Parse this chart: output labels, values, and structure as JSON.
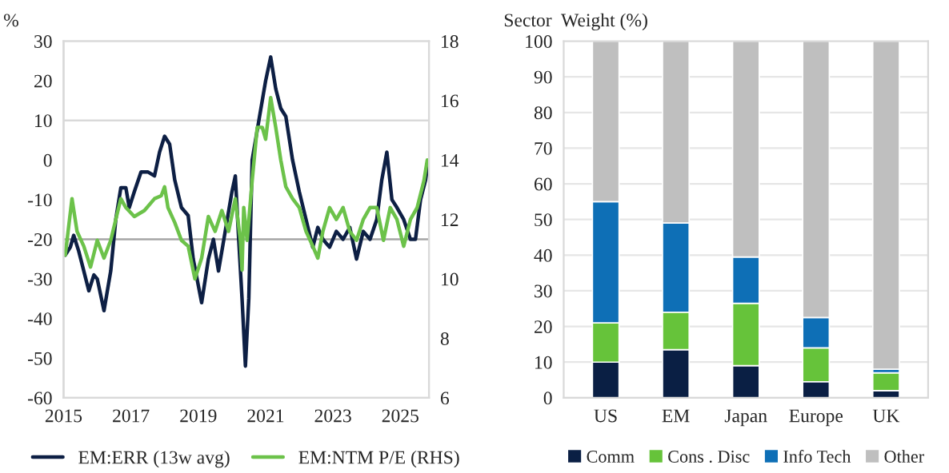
{
  "chart_data": [
    {
      "type": "line",
      "ylabel": "%",
      "xlim": [
        2015,
        2025.85
      ],
      "xticks": [
        {
          "value": 2015,
          "label": "2015"
        },
        {
          "value": 2017,
          "label": "2017"
        },
        {
          "value": 2019,
          "label": "2019"
        },
        {
          "value": 2021,
          "label": "2021"
        },
        {
          "value": 2023,
          "label": "2023"
        },
        {
          "value": 2025,
          "label": "2025"
        }
      ],
      "ylim": [
        -60,
        30
      ],
      "yticks": [
        -60,
        -50,
        -40,
        -30,
        -20,
        -10,
        0,
        10,
        20,
        30
      ],
      "y2lim": [
        6,
        18
      ],
      "y2ticks": [
        6,
        8,
        10,
        12,
        14,
        16,
        18
      ],
      "grid": false,
      "legend": "bottom",
      "marker": "none",
      "line_style": "solid",
      "ref_lines": [
        {
          "axis": "y",
          "value": 10,
          "color": "#d9d9d9"
        },
        {
          "axis": "y",
          "value": -20,
          "color": "#a6a6a6"
        }
      ],
      "series": [
        {
          "name": "EM:ERR (13w avg)",
          "color": "#0d1f44",
          "x": [
            2015.05,
            2015.2,
            2015.3,
            2015.45,
            2015.6,
            2015.75,
            2015.9,
            2016.0,
            2016.2,
            2016.4,
            2016.55,
            2016.7,
            2016.85,
            2016.95,
            2017.1,
            2017.3,
            2017.5,
            2017.7,
            2017.85,
            2018.0,
            2018.15,
            2018.3,
            2018.5,
            2018.7,
            2018.85,
            2019.1,
            2019.3,
            2019.45,
            2019.6,
            2019.8,
            2020.0,
            2020.1,
            2020.2,
            2020.3,
            2020.4,
            2020.5,
            2020.6,
            2020.8,
            2021.0,
            2021.15,
            2021.3,
            2021.45,
            2021.6,
            2021.8,
            2022.0,
            2022.2,
            2022.4,
            2022.55,
            2022.7,
            2022.9,
            2023.1,
            2023.3,
            2023.5,
            2023.7,
            2023.9,
            2024.1,
            2024.3,
            2024.45,
            2024.6,
            2024.75,
            2024.9,
            2025.1,
            2025.3,
            2025.45,
            2025.6,
            2025.75,
            2025.8
          ],
          "values": [
            -24,
            -22,
            -19,
            -23,
            -28,
            -33,
            -29,
            -30,
            -38,
            -28,
            -15,
            -7,
            -7,
            -12,
            -8,
            -3,
            -3,
            -4,
            2,
            6,
            4,
            -5,
            -12,
            -14,
            -25,
            -36,
            -25,
            -20,
            -28,
            -18,
            -8,
            -4,
            -20,
            -35,
            -52,
            -35,
            0,
            10,
            20,
            26,
            18,
            13,
            11,
            0,
            -8,
            -15,
            -22,
            -17,
            -20,
            -22,
            -18,
            -20,
            -17,
            -25,
            -18,
            -20,
            -15,
            -5,
            2,
            -10,
            -12,
            -15,
            -20,
            -20,
            -10,
            -5,
            -2
          ]
        },
        {
          "name": "EM:NTM P/E (RHS)",
          "color": "#6cc24a",
          "axis": "y2",
          "x": [
            2015.05,
            2015.25,
            2015.4,
            2015.6,
            2015.8,
            2016.0,
            2016.2,
            2016.4,
            2016.55,
            2016.7,
            2016.85,
            2017.1,
            2017.4,
            2017.7,
            2017.9,
            2018.0,
            2018.1,
            2018.3,
            2018.5,
            2018.7,
            2018.9,
            2019.1,
            2019.3,
            2019.5,
            2019.7,
            2019.9,
            2020.1,
            2020.25,
            2020.3,
            2020.35,
            2020.45,
            2020.6,
            2020.75,
            2020.9,
            2021.0,
            2021.15,
            2021.3,
            2021.45,
            2021.6,
            2021.8,
            2022.0,
            2022.2,
            2022.4,
            2022.55,
            2022.7,
            2022.9,
            2023.1,
            2023.3,
            2023.5,
            2023.7,
            2023.9,
            2024.1,
            2024.3,
            2024.5,
            2024.7,
            2024.9,
            2025.1,
            2025.3,
            2025.5,
            2025.7,
            2025.8
          ],
          "values": [
            10.8,
            12.7,
            11.6,
            11.1,
            10.4,
            11.3,
            10.7,
            11.3,
            12.0,
            12.7,
            12.4,
            12.1,
            12.3,
            12.7,
            12.8,
            13.1,
            12.4,
            11.9,
            11.3,
            11.1,
            10.0,
            10.7,
            12.1,
            11.6,
            12.3,
            11.6,
            12.7,
            11.3,
            10.3,
            12.4,
            11.3,
            13.3,
            15.1,
            15.1,
            14.7,
            16.1,
            15.1,
            14.0,
            13.1,
            12.7,
            12.4,
            11.6,
            11.1,
            10.7,
            11.6,
            12.4,
            12.0,
            12.4,
            11.6,
            11.3,
            12.0,
            12.4,
            12.4,
            11.3,
            12.4,
            12.0,
            11.1,
            12.0,
            12.4,
            13.3,
            14.0
          ]
        }
      ]
    },
    {
      "type": "bar",
      "stacked": true,
      "ylabel": "Sector  Weight (%)",
      "categories": [
        "US",
        "EM",
        "Japan",
        "Europe",
        "UK"
      ],
      "ylim": [
        0,
        100
      ],
      "yticks": [
        0,
        10,
        20,
        30,
        40,
        50,
        60,
        70,
        80,
        90,
        100
      ],
      "grid": "y",
      "legend": "bottom",
      "series": [
        {
          "name": "Comm",
          "color": "#0a1f44",
          "values": [
            10,
            13.5,
            9,
            4.5,
            2
          ]
        },
        {
          "name": "Cons . Disc",
          "color": "#66c33a",
          "values": [
            11,
            10.5,
            17.5,
            9.5,
            5
          ]
        },
        {
          "name": "Info Tech",
          "color": "#0e6fb6",
          "values": [
            34,
            25,
            13,
            8.5,
            1
          ]
        },
        {
          "name": "Other",
          "color": "#bfbfbf",
          "values": [
            45,
            51,
            60.5,
            77.5,
            92
          ]
        }
      ]
    }
  ]
}
